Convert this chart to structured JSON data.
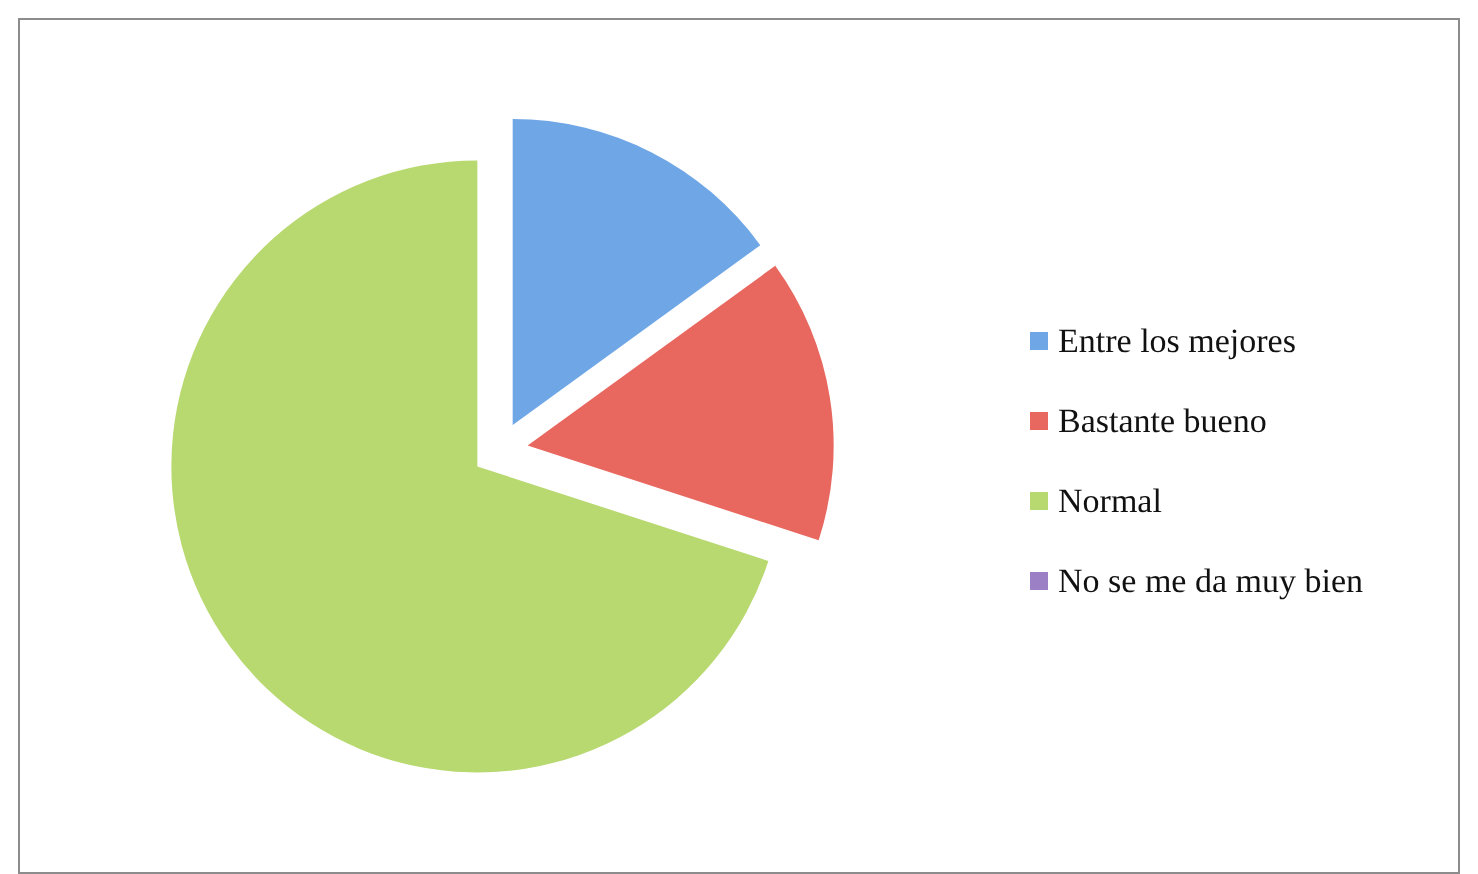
{
  "chart_data": {
    "type": "pie",
    "categories": [
      "Entre los mejores",
      "Bastante bueno",
      "Normal",
      "No se me da muy bien"
    ],
    "values": [
      15,
      15,
      70,
      0
    ],
    "colors": [
      "#6ea6e6",
      "#e8675f",
      "#b8d870",
      "#9b80c6"
    ],
    "legend": "right"
  }
}
